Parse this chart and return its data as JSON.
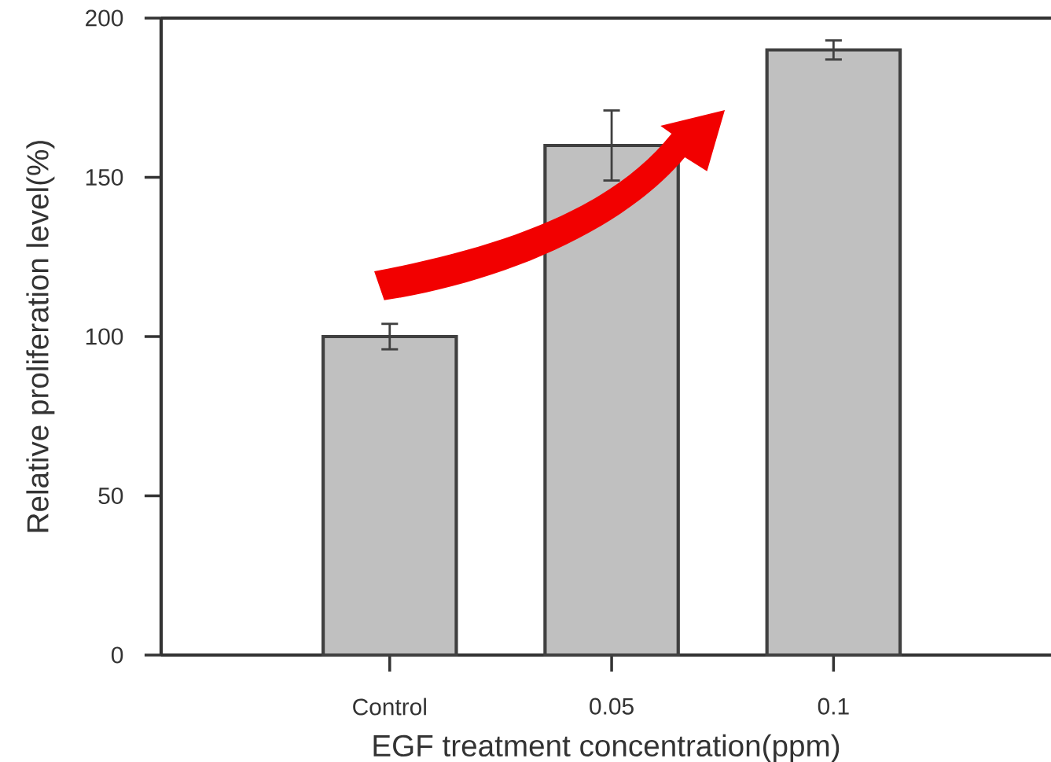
{
  "chart_data": {
    "type": "bar",
    "xlabel": "EGF treatment concentration(ppm)",
    "ylabel": "Relative proliferation level(%)",
    "categories": [
      "Control",
      "0.05",
      "0.1"
    ],
    "values": [
      100,
      160,
      190
    ],
    "errors": [
      4,
      11,
      3
    ],
    "color": "#c0c0c0",
    "ylim": [
      0,
      200
    ],
    "yticks": [
      0,
      50,
      100,
      150,
      200
    ]
  }
}
